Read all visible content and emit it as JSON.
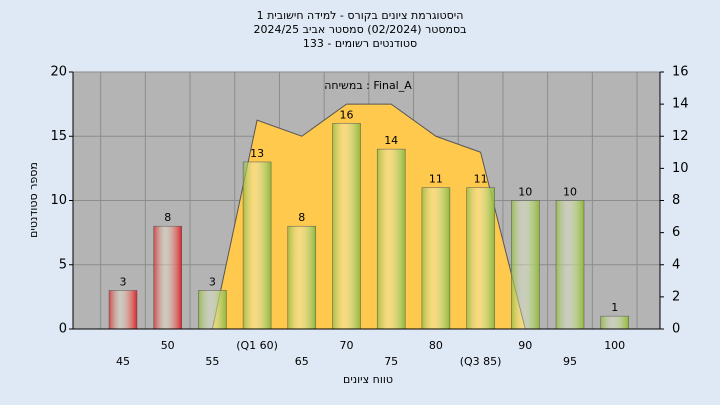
{
  "chart_data": {
    "type": "bar",
    "title": [
      "היסטוגרמת ציונים בקורס - למידה חישובית 1",
      "בסמסטר (02/2024) סמסטר אביב 2024/25",
      "סטודנטים רשומים - 133"
    ],
    "annotation": "במשיחה : Final_A",
    "xlabel": "טווח ציונים",
    "ylabel": "מספר סטודנטים",
    "categories": [
      "45",
      "50",
      "55",
      "(Q1 60)",
      "65",
      "70",
      "75",
      "80",
      "(Q3 85)",
      "90",
      "95",
      "100"
    ],
    "values": [
      3,
      8,
      3,
      13,
      8,
      16,
      14,
      11,
      11,
      10,
      10,
      1
    ],
    "colors": [
      "#d8262c",
      "#d8262c",
      "#8fb83a",
      "#8fb83a",
      "#8fb83a",
      "#8fb83a",
      "#8fb83a",
      "#8fb83a",
      "#8fb83a",
      "#8fb83a",
      "#8fb83a",
      "#8fb83a"
    ],
    "area": {
      "axis": "y2",
      "color": "#ffc94d",
      "values": [
        null,
        null,
        0,
        13,
        12,
        14,
        14,
        12,
        11,
        0,
        null,
        null
      ]
    },
    "ylim": [
      0,
      20
    ],
    "yticks": [
      0,
      5,
      10,
      15,
      20
    ],
    "y2lim": [
      0,
      16
    ],
    "y2ticks": [
      0,
      2,
      4,
      6,
      8,
      10,
      12,
      14,
      16
    ],
    "grid": true
  }
}
